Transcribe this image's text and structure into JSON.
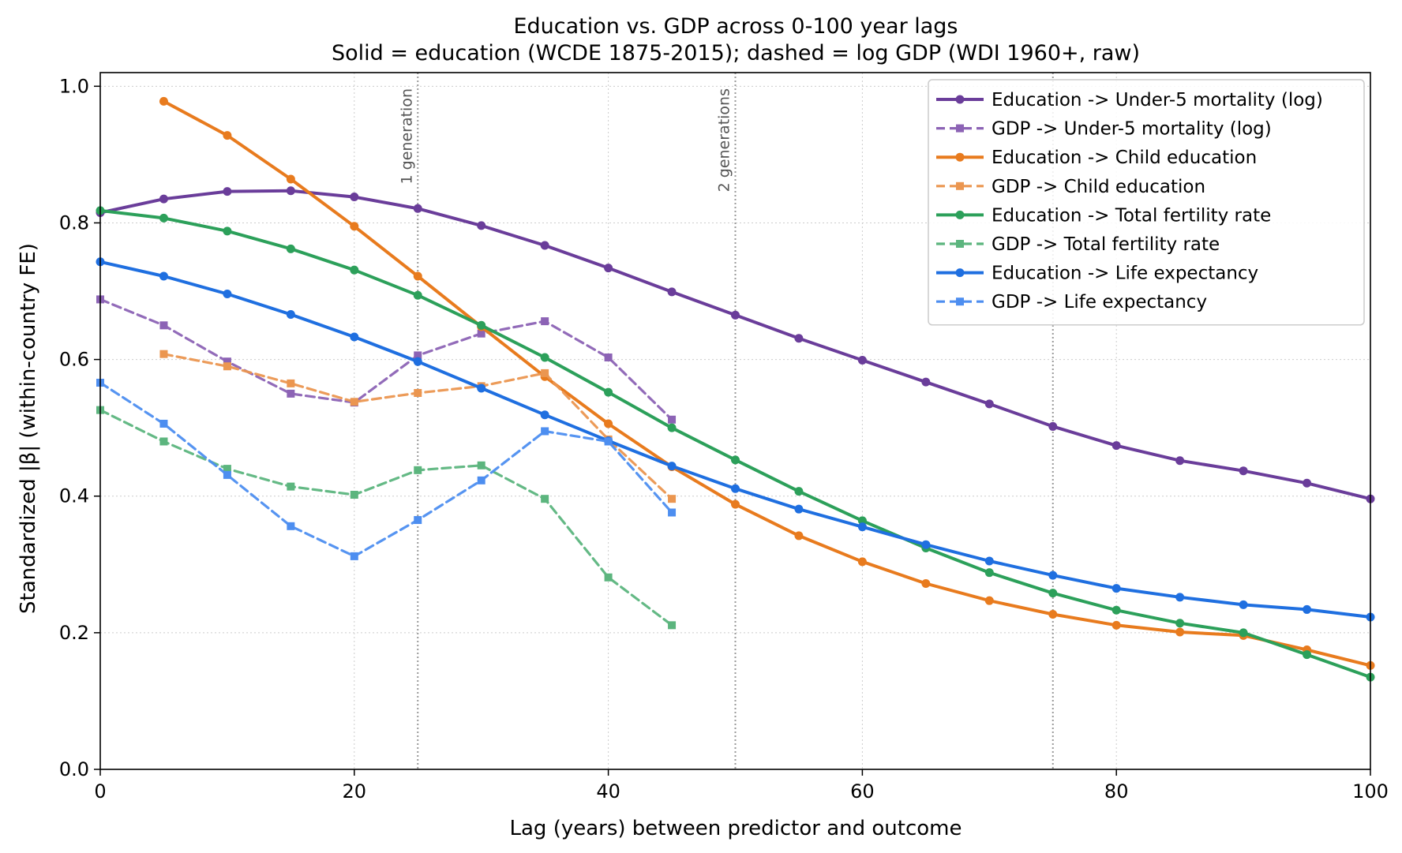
{
  "chart_data": {
    "type": "line",
    "title": "Education vs. GDP across 0-100 year lags",
    "subtitle": "Solid = education (WCDE 1875-2015); dashed = log GDP (WDI 1960+, raw)",
    "xlabel": "Lag (years) between predictor and outcome",
    "ylabel": "Standardized |β| (within-country FE)",
    "xlim": [
      0,
      100
    ],
    "ylim": [
      0,
      1.02
    ],
    "xticks": [
      0,
      20,
      40,
      60,
      80,
      100
    ],
    "yticks": [
      0.0,
      0.2,
      0.4,
      0.6,
      0.8,
      1.0
    ],
    "xtick_labels": [
      "0",
      "20",
      "40",
      "60",
      "80",
      "100"
    ],
    "ytick_labels": [
      "0.0",
      "0.2",
      "0.4",
      "0.6",
      "0.8",
      "1.0"
    ],
    "grid": true,
    "legend_position": "top-right",
    "reference_lines": [
      {
        "x": 25,
        "label": "1 generation"
      },
      {
        "x": 50,
        "label": "2 generations"
      },
      {
        "x": 75,
        "label": ""
      }
    ],
    "series": [
      {
        "name": "Education -> Under-5 mortality (log)",
        "color": "#6a3d9a",
        "style": "solid",
        "marker": "circle",
        "x": [
          0,
          5,
          10,
          15,
          20,
          25,
          30,
          35,
          40,
          45,
          50,
          55,
          60,
          65,
          70,
          75,
          80,
          85,
          90,
          95,
          100
        ],
        "y": [
          0.815,
          0.835,
          0.846,
          0.847,
          0.838,
          0.821,
          0.796,
          0.767,
          0.734,
          0.699,
          0.665,
          0.631,
          0.599,
          0.567,
          0.535,
          0.502,
          0.474,
          0.452,
          0.437,
          0.419,
          0.396
        ]
      },
      {
        "name": "GDP -> Under-5 mortality (log)",
        "color": "#8c63b5",
        "style": "dashed",
        "marker": "square",
        "x": [
          0,
          5,
          10,
          15,
          20,
          25,
          30,
          35,
          40,
          45
        ],
        "y": [
          0.688,
          0.65,
          0.597,
          0.55,
          0.537,
          0.606,
          0.638,
          0.656,
          0.603,
          0.512
        ]
      },
      {
        "name": "Education -> Child education",
        "color": "#e87b1e",
        "style": "solid",
        "marker": "circle",
        "x": [
          5,
          10,
          15,
          20,
          25,
          30,
          35,
          40,
          45,
          50,
          55,
          60,
          65,
          70,
          75,
          80,
          85,
          90,
          95,
          100
        ],
        "y": [
          0.978,
          0.928,
          0.864,
          0.795,
          0.722,
          0.648,
          0.575,
          0.506,
          0.443,
          0.388,
          0.342,
          0.304,
          0.272,
          0.247,
          0.227,
          0.211,
          0.201,
          0.196,
          0.175,
          0.152
        ]
      },
      {
        "name": "GDP -> Child education",
        "color": "#eb9650",
        "style": "dashed",
        "marker": "square",
        "x": [
          5,
          10,
          15,
          20,
          25,
          30,
          35,
          40,
          45
        ],
        "y": [
          0.608,
          0.59,
          0.565,
          0.538,
          0.551,
          0.561,
          0.58,
          0.483,
          0.396
        ]
      },
      {
        "name": "Education -> Total fertility rate",
        "color": "#2ca05a",
        "style": "solid",
        "marker": "circle",
        "x": [
          0,
          5,
          10,
          15,
          20,
          25,
          30,
          35,
          40,
          45,
          50,
          55,
          60,
          65,
          70,
          75,
          80,
          85,
          90,
          95,
          100
        ],
        "y": [
          0.818,
          0.807,
          0.788,
          0.762,
          0.731,
          0.694,
          0.65,
          0.603,
          0.552,
          0.5,
          0.453,
          0.407,
          0.364,
          0.324,
          0.288,
          0.258,
          0.233,
          0.214,
          0.2,
          0.168,
          0.135
        ]
      },
      {
        "name": "GDP -> Total fertility rate",
        "color": "#5cb57e",
        "style": "dashed",
        "marker": "square",
        "x": [
          0,
          5,
          10,
          15,
          20,
          25,
          30,
          35,
          40,
          45
        ],
        "y": [
          0.526,
          0.48,
          0.44,
          0.414,
          0.402,
          0.438,
          0.445,
          0.396,
          0.281,
          0.211
        ]
      },
      {
        "name": "Education -> Life expectancy",
        "color": "#1f6fe0",
        "style": "solid",
        "marker": "circle",
        "x": [
          0,
          5,
          10,
          15,
          20,
          25,
          30,
          35,
          40,
          45,
          50,
          55,
          60,
          65,
          70,
          75,
          80,
          85,
          90,
          95,
          100
        ],
        "y": [
          0.743,
          0.722,
          0.696,
          0.666,
          0.633,
          0.597,
          0.558,
          0.519,
          0.481,
          0.444,
          0.411,
          0.381,
          0.355,
          0.329,
          0.305,
          0.284,
          0.265,
          0.252,
          0.241,
          0.234,
          0.223
        ]
      },
      {
        "name": "GDP -> Life expectancy",
        "color": "#4d8ef0",
        "style": "dashed",
        "marker": "square",
        "x": [
          0,
          5,
          10,
          15,
          20,
          25,
          30,
          35,
          40,
          45
        ],
        "y": [
          0.566,
          0.506,
          0.431,
          0.356,
          0.312,
          0.365,
          0.423,
          0.495,
          0.48,
          0.376
        ]
      }
    ]
  }
}
